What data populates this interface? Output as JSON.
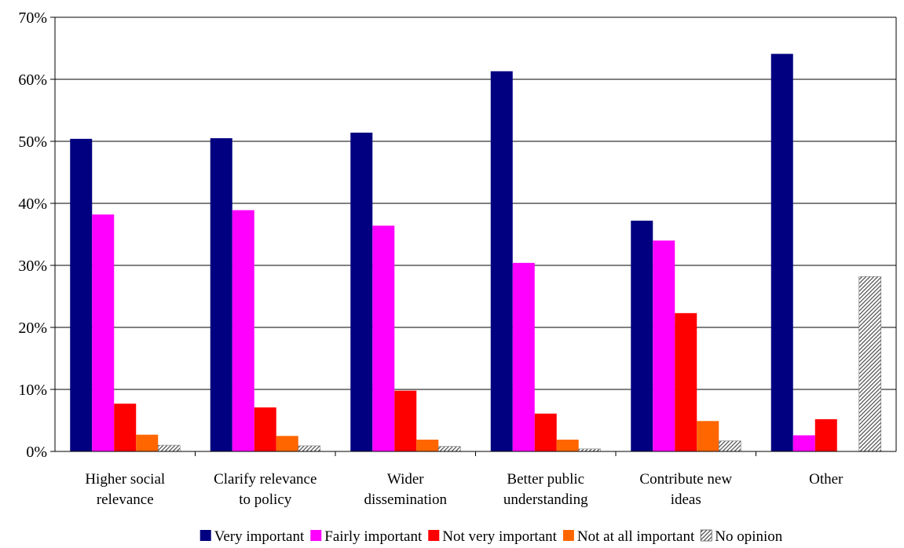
{
  "chart_data": {
    "type": "bar",
    "categories": [
      [
        "Higher social",
        "relevance"
      ],
      [
        "Clarify relevance",
        "to policy"
      ],
      [
        "Wider",
        "dissemination"
      ],
      [
        "Better public",
        "understanding"
      ],
      [
        "Contribute new",
        "ideas"
      ],
      [
        "Other"
      ]
    ],
    "series": [
      {
        "name": "Very important",
        "color": "#000080",
        "pattern": "solid",
        "values": [
          50.4,
          50.5,
          51.4,
          61.3,
          37.2,
          64.1
        ]
      },
      {
        "name": "Fairly important",
        "color": "#ff00ff",
        "pattern": "solid",
        "values": [
          38.2,
          38.9,
          36.4,
          30.4,
          34.0,
          2.6
        ]
      },
      {
        "name": "Not very important",
        "color": "#ff0000",
        "pattern": "solid",
        "values": [
          7.7,
          7.1,
          9.8,
          6.1,
          22.3,
          5.2
        ]
      },
      {
        "name": "Not at all important",
        "color": "#ff6600",
        "pattern": "solid",
        "values": [
          2.7,
          2.5,
          1.9,
          1.9,
          4.9,
          0
        ]
      },
      {
        "name": "No opinion",
        "color": "#808080",
        "pattern": "hatch",
        "values": [
          1.0,
          0.9,
          0.8,
          0.4,
          1.7,
          28.2
        ]
      }
    ],
    "ylim": [
      0,
      70
    ],
    "yticks": [
      0,
      10,
      20,
      30,
      40,
      50,
      60,
      70
    ],
    "ytick_labels": [
      "0%",
      "10%",
      "20%",
      "30%",
      "40%",
      "50%",
      "60%",
      "70%"
    ],
    "grid": true,
    "legend": "bottom",
    "title": "",
    "xlabel": "",
    "ylabel": ""
  }
}
